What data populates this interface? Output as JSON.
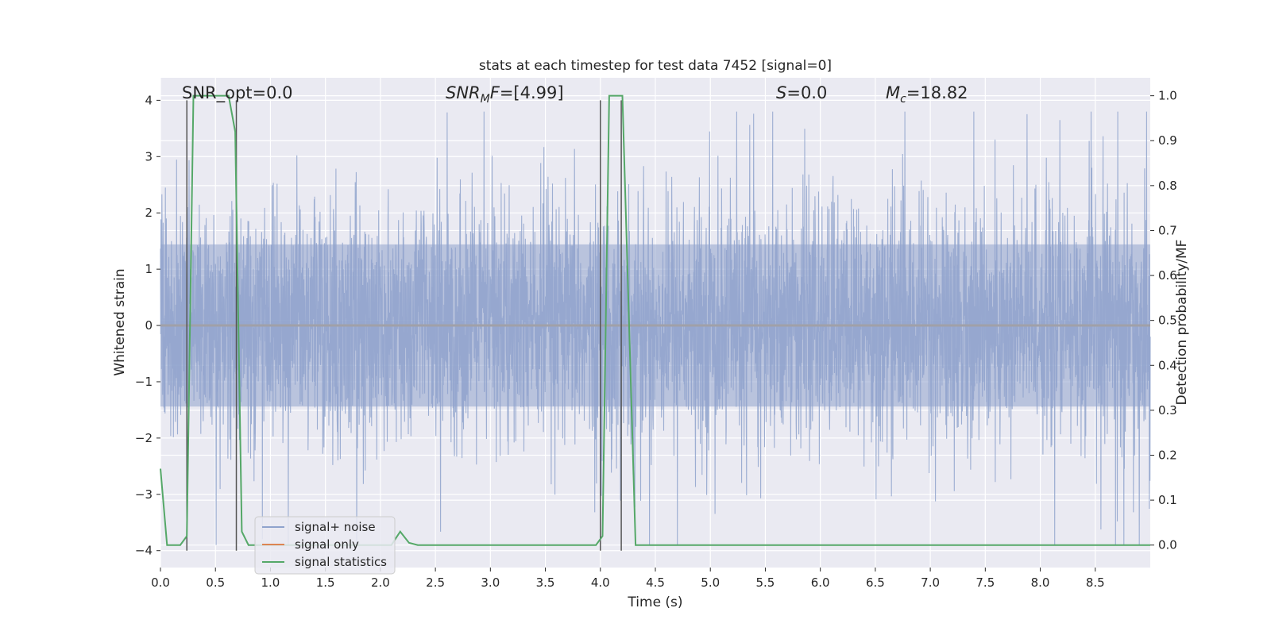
{
  "chart_data": {
    "type": "line",
    "title": "stats at each timestep for test data 7452 [signal=0]",
    "xlabel": "Time (s)",
    "ylabel": "Whitened strain",
    "ylabel_right": "Detection probability/MF",
    "xlim": [
      0.0,
      9.0
    ],
    "ylim": [
      -4.3,
      4.4
    ],
    "ylim_right": [
      -0.05,
      1.04
    ],
    "x_ticks": [
      "0.0",
      "0.5",
      "1.0",
      "1.5",
      "2.0",
      "2.5",
      "3.0",
      "3.5",
      "4.0",
      "4.5",
      "5.0",
      "5.5",
      "6.0",
      "6.5",
      "7.0",
      "7.5",
      "8.0",
      "8.5"
    ],
    "y_ticks": [
      "4",
      "3",
      "2",
      "1",
      "0",
      "−1",
      "−2",
      "−3",
      "−4"
    ],
    "y_ticks_right": [
      "1.0",
      "0.9",
      "0.8",
      "0.7",
      "0.6",
      "0.5",
      "0.4",
      "0.3",
      "0.2",
      "0.1",
      "0.0"
    ],
    "grid": true,
    "legend_position": "lower-left",
    "annotations": {
      "snr_opt": "SNR_opt=0.0",
      "snr_mf_sym": "SNR",
      "snr_mf_sub": "M",
      "snr_mf_sym2": "F",
      "snr_mf_val": "=[4.99]",
      "s_sym": "S",
      "s_val": "=0.0",
      "mc_sym": "M",
      "mc_sub": "c",
      "mc_val": "=18.82"
    },
    "series": [
      {
        "name": "signal+ noise",
        "color": "#8fa3cc",
        "description_type": "noise",
        "sample_rate": 450,
        "band_sigma": 1.6,
        "peak_max": 3.8,
        "peak_min": -3.9
      },
      {
        "name": "signal only",
        "color": "#dd8452",
        "x": [
          0.0,
          9.0
        ],
        "y": [
          0.0,
          0.0
        ]
      },
      {
        "name": "signal statistics",
        "color": "#55a868",
        "axis": "right",
        "x": [
          0.0,
          0.06,
          0.18,
          0.24,
          0.3,
          0.36,
          0.5,
          0.62,
          0.68,
          0.74,
          0.8,
          1.9,
          2.1,
          2.18,
          2.26,
          2.34,
          3.96,
          4.02,
          4.08,
          4.2,
          4.26,
          4.32,
          9.0
        ],
        "y": [
          0.17,
          0.0,
          0.0,
          0.02,
          1.0,
          1.0,
          1.0,
          1.0,
          0.92,
          0.03,
          0.0,
          0.0,
          0.0,
          0.03,
          0.005,
          0.0,
          0.0,
          0.02,
          1.0,
          1.0,
          0.5,
          0.0,
          0.0
        ]
      }
    ],
    "vlines": [
      0.24,
      0.69,
      4.0,
      4.19
    ]
  }
}
